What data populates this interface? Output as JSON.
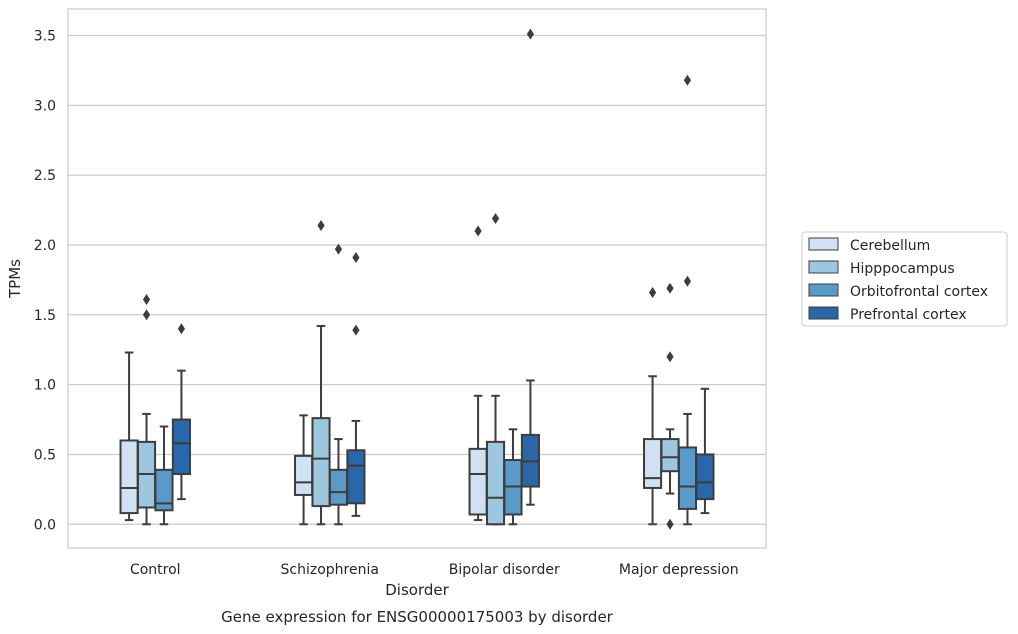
{
  "chart_data": {
    "type": "box",
    "xlabel": "Disorder",
    "ylabel": "TPMs",
    "caption": "Gene expression for ENSG00000175003 by disorder",
    "categories": [
      "Control",
      "Schizophrenia",
      "Bipolar disorder",
      "Major depression"
    ],
    "ylim": [
      -0.17,
      3.69
    ],
    "yticks": [
      0.0,
      0.5,
      1.0,
      1.5,
      2.0,
      2.5,
      3.0,
      3.5
    ],
    "ytick_labels": [
      "0.0",
      "0.5",
      "1.0",
      "1.5",
      "2.0",
      "2.5",
      "3.0",
      "3.5"
    ],
    "grid": "horizontal",
    "legend_position": "outside-right",
    "series": [
      {
        "name": "Cerebellum",
        "color": "#cfe1f2",
        "boxes": [
          {
            "whisker_low": 0.03,
            "q1": 0.08,
            "median": 0.26,
            "q3": 0.6,
            "whisker_high": 1.23,
            "outliers": []
          },
          {
            "whisker_low": 0.0,
            "q1": 0.21,
            "median": 0.3,
            "q3": 0.49,
            "whisker_high": 0.78,
            "outliers": []
          },
          {
            "whisker_low": 0.03,
            "q1": 0.07,
            "median": 0.36,
            "q3": 0.54,
            "whisker_high": 0.92,
            "outliers": [
              2.1
            ]
          },
          {
            "whisker_low": 0.0,
            "q1": 0.26,
            "median": 0.33,
            "q3": 0.61,
            "whisker_high": 1.06,
            "outliers": [
              1.66
            ]
          }
        ]
      },
      {
        "name": "Hipppocampus",
        "color": "#9dc7df",
        "boxes": [
          {
            "whisker_low": 0.0,
            "q1": 0.12,
            "median": 0.36,
            "q3": 0.59,
            "whisker_high": 0.79,
            "outliers": [
              1.5,
              1.61
            ]
          },
          {
            "whisker_low": 0.0,
            "q1": 0.13,
            "median": 0.47,
            "q3": 0.76,
            "whisker_high": 1.42,
            "outliers": [
              2.14
            ]
          },
          {
            "whisker_low": 0.0,
            "q1": 0.0,
            "median": 0.19,
            "q3": 0.59,
            "whisker_high": 0.92,
            "outliers": [
              2.19
            ]
          },
          {
            "whisker_low": 0.22,
            "q1": 0.38,
            "median": 0.48,
            "q3": 0.61,
            "whisker_high": 0.68,
            "outliers": [
              0.0,
              1.2,
              1.69
            ]
          }
        ]
      },
      {
        "name": "Orbitofrontal cortex",
        "color": "#5a9ac8",
        "boxes": [
          {
            "whisker_low": 0.0,
            "q1": 0.1,
            "median": 0.15,
            "q3": 0.39,
            "whisker_high": 0.7,
            "outliers": []
          },
          {
            "whisker_low": 0.0,
            "q1": 0.14,
            "median": 0.23,
            "q3": 0.39,
            "whisker_high": 0.61,
            "outliers": [
              1.97
            ]
          },
          {
            "whisker_low": 0.0,
            "q1": 0.07,
            "median": 0.27,
            "q3": 0.46,
            "whisker_high": 0.68,
            "outliers": []
          },
          {
            "whisker_low": 0.0,
            "q1": 0.11,
            "median": 0.27,
            "q3": 0.55,
            "whisker_high": 0.79,
            "outliers": [
              1.74,
              3.18
            ]
          }
        ]
      },
      {
        "name": "Prefrontal cortex",
        "color": "#2a67a8",
        "boxes": [
          {
            "whisker_low": 0.18,
            "q1": 0.36,
            "median": 0.58,
            "q3": 0.75,
            "whisker_high": 1.1,
            "outliers": [
              1.4
            ]
          },
          {
            "whisker_low": 0.06,
            "q1": 0.15,
            "median": 0.42,
            "q3": 0.53,
            "whisker_high": 0.74,
            "outliers": [
              1.39,
              1.91
            ]
          },
          {
            "whisker_low": 0.14,
            "q1": 0.27,
            "median": 0.45,
            "q3": 0.64,
            "whisker_high": 1.03,
            "outliers": [
              3.51
            ]
          },
          {
            "whisker_low": 0.08,
            "q1": 0.18,
            "median": 0.3,
            "q3": 0.5,
            "whisker_high": 0.97,
            "outliers": []
          }
        ]
      }
    ]
  }
}
